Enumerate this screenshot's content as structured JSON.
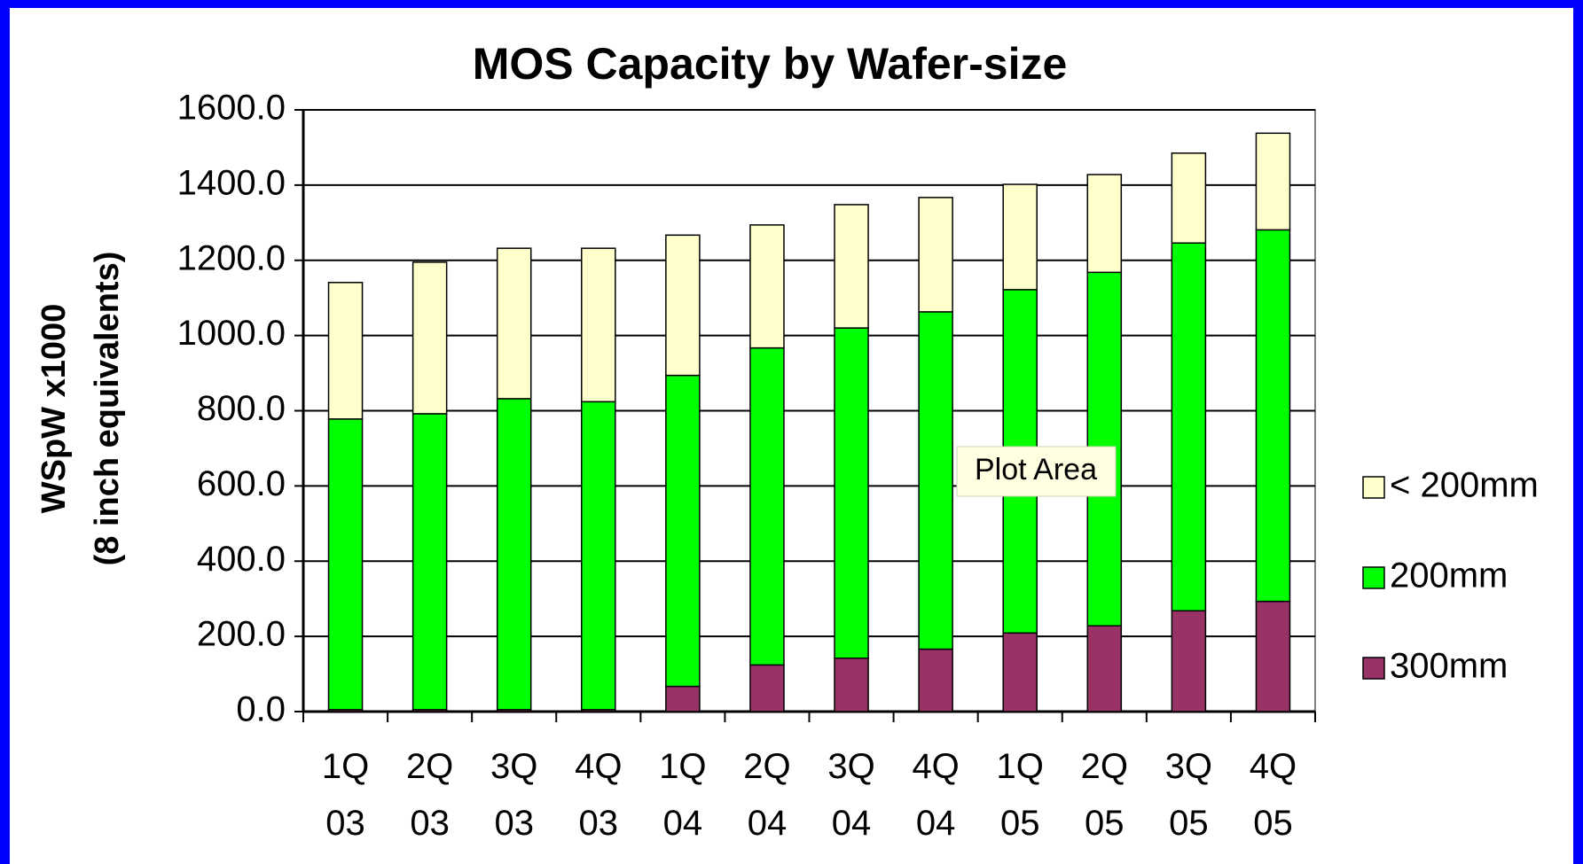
{
  "chart_data": {
    "type": "stacked_bar",
    "title": "MOS Capacity by Wafer-size",
    "y_label": [
      "WSpW x1000",
      "(8 inch equivalents)"
    ],
    "annotation": "Plot Area",
    "categories": [
      "1Q\n03",
      "2Q\n03",
      "3Q\n03",
      "4Q\n03",
      "1Q\n04",
      "2Q\n04",
      "3Q\n04",
      "4Q\n04",
      "1Q\n05",
      "2Q\n05",
      "3Q\n05",
      "4Q\n05"
    ],
    "series": [
      {
        "name": "300mm",
        "color": "#993366",
        "values": [
          5,
          5,
          5,
          5,
          67,
          124,
          142,
          166,
          209,
          228,
          268,
          293
        ]
      },
      {
        "name": "200mm",
        "color": "#00ff00",
        "values": [
          773,
          787,
          827,
          819,
          827,
          843,
          878,
          897,
          913,
          940,
          978,
          988
        ]
      },
      {
        "name": "< 200mm",
        "color": "#ffffcc",
        "values": [
          363,
          403,
          400,
          408,
          373,
          327,
          328,
          304,
          280,
          260,
          239,
          257
        ]
      }
    ],
    "ylim": [
      0,
      1600
    ],
    "yticks": [
      {
        "value": 0,
        "label": "0.0"
      },
      {
        "value": 200,
        "label": "200.0"
      },
      {
        "value": 400,
        "label": "400.0"
      },
      {
        "value": 600,
        "label": "600.0"
      },
      {
        "value": 800,
        "label": "800.0"
      },
      {
        "value": 1000,
        "label": "1000.0"
      },
      {
        "value": 1200,
        "label": "1200.0"
      },
      {
        "value": 1400,
        "label": "1400.0"
      },
      {
        "value": 1600,
        "label": "1600.0"
      }
    ],
    "grid": true,
    "legend": "right"
  }
}
